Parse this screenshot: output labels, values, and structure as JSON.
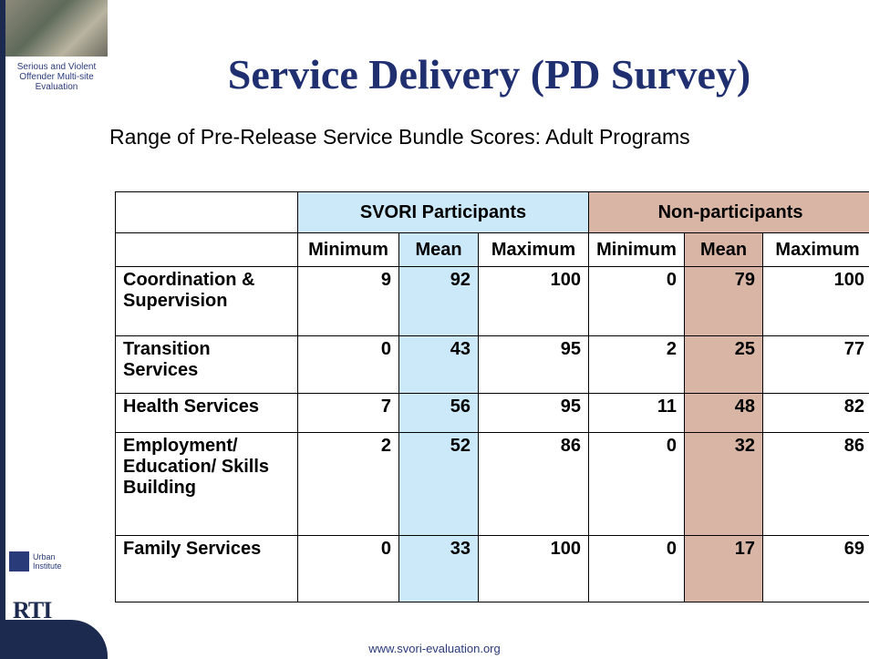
{
  "sidebar": {
    "project": "Serious and Violent Offender Multi-site Evaluation",
    "logo1": "Urban Institute",
    "logo2": "RTI"
  },
  "title": "Service Delivery (PD Survey)",
  "subtitle": "Range of Pre-Release Service Bundle Scores: Adult Programs",
  "table": {
    "groups": [
      "SVORI Participants",
      "Non-participants"
    ],
    "columns": [
      "Minimum",
      "Mean",
      "Maximum",
      "Minimum",
      "Mean",
      "Maximum"
    ],
    "rows": [
      {
        "label": "Coordination & Supervision",
        "values": [
          9,
          92,
          100,
          0,
          79,
          100
        ]
      },
      {
        "label": "Transition Services",
        "values": [
          0,
          43,
          95,
          2,
          25,
          77
        ]
      },
      {
        "label": "Health Services",
        "values": [
          7,
          56,
          95,
          11,
          48,
          82
        ]
      },
      {
        "label": "Employment/ Education/ Skills Building",
        "values": [
          2,
          52,
          86,
          0,
          32,
          86
        ]
      },
      {
        "label": "Family Services",
        "values": [
          0,
          33,
          100,
          0,
          17,
          69
        ]
      }
    ]
  },
  "footer": "www.svori-evaluation.org"
}
